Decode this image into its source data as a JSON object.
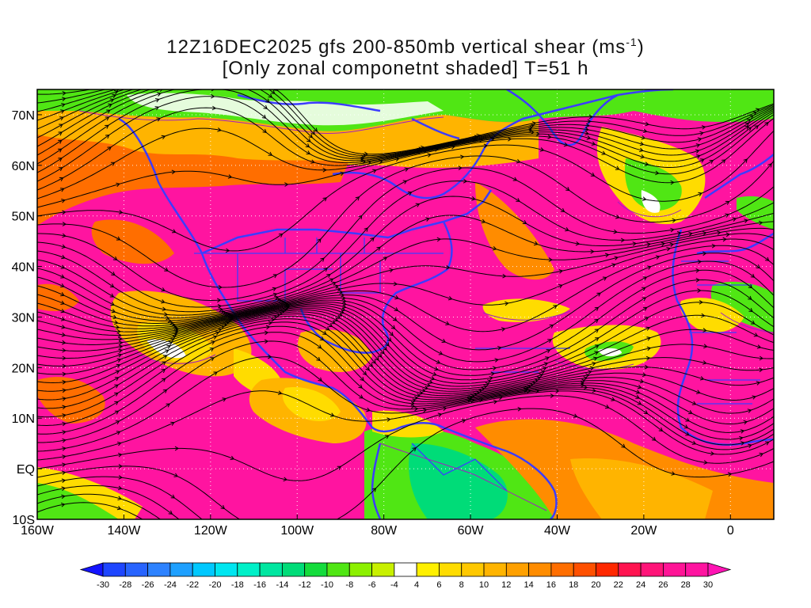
{
  "title": {
    "line1_prefix": "12Z16DEC2025 gfs 200-850mb vertical shear (ms",
    "line1_sup": "-1",
    "line1_suffix": ")",
    "line2": "[Only zonal componetnt shaded] T=51 h"
  },
  "map_extent": {
    "lon_min": -160,
    "lon_max": 10,
    "lat_min": -10,
    "lat_max": 75
  },
  "lon_ticks": [
    {
      "value": -160,
      "label": "160W"
    },
    {
      "value": -140,
      "label": "140W"
    },
    {
      "value": -120,
      "label": "120W"
    },
    {
      "value": -100,
      "label": "100W"
    },
    {
      "value": -80,
      "label": "80W"
    },
    {
      "value": -60,
      "label": "60W"
    },
    {
      "value": -40,
      "label": "40W"
    },
    {
      "value": -20,
      "label": "20W"
    },
    {
      "value": 0,
      "label": "0"
    }
  ],
  "lat_ticks": [
    {
      "value": -10,
      "label": "10S"
    },
    {
      "value": 0,
      "label": "EQ"
    },
    {
      "value": 10,
      "label": "10N"
    },
    {
      "value": 20,
      "label": "20N"
    },
    {
      "value": 30,
      "label": "30N"
    },
    {
      "value": 40,
      "label": "40N"
    },
    {
      "value": 50,
      "label": "50N"
    },
    {
      "value": 60,
      "label": "60N"
    },
    {
      "value": 70,
      "label": "70N"
    }
  ],
  "colorbar": {
    "labels": [
      "-30",
      "-28",
      "-26",
      "-24",
      "-22",
      "-20",
      "-18",
      "-16",
      "-14",
      "-12",
      "-10",
      "-8",
      "-6",
      "-4",
      "4",
      "6",
      "8",
      "10",
      "12",
      "14",
      "16",
      "18",
      "20",
      "22",
      "24",
      "26",
      "28",
      "30"
    ],
    "colors": [
      "#1414ff",
      "#1e46ff",
      "#2864ff",
      "#2d82ff",
      "#1ea0ff",
      "#00c8ff",
      "#00e6f0",
      "#00f0c8",
      "#00e6a0",
      "#00dc78",
      "#14dc3c",
      "#50e614",
      "#8cf000",
      "#c8f000",
      "#ffffff",
      "#fff000",
      "#ffdc00",
      "#ffc800",
      "#ffb400",
      "#ffa000",
      "#ff8c00",
      "#ff6e00",
      "#ff5000",
      "#ff2800",
      "#ff1450",
      "#ff1478",
      "#ff1496",
      "#ff14a0",
      "#ff14b4"
    ]
  },
  "colors": {
    "coastline": "#3c3cff",
    "contour": "#a020c0",
    "streamline": "#000000",
    "gridline": "#ffffff"
  }
}
